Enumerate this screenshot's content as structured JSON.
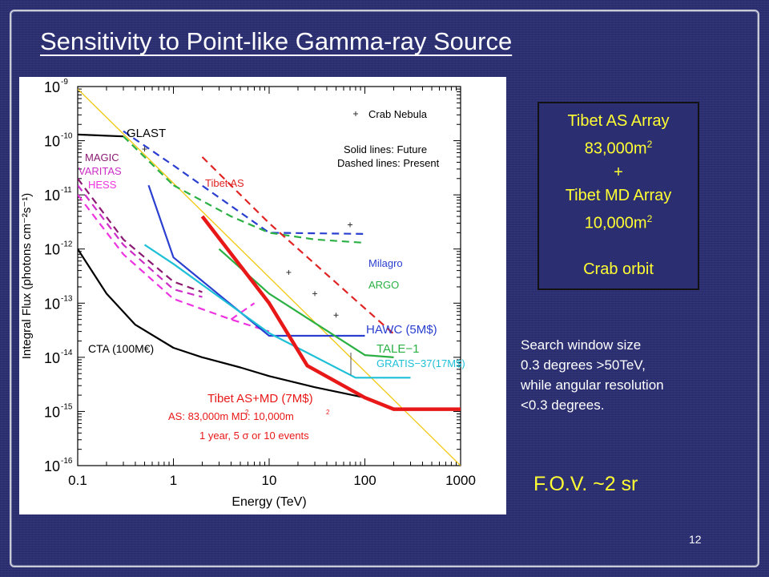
{
  "slide": {
    "title": "Sensitivity to Point-like Gamma-ray Source",
    "page_number": "12",
    "fov": "F.O.V. ~2 sr",
    "search_note": [
      "Search window size",
      "0.3 degrees >50TeV,",
      "while angular resolution",
      "<0.3 degrees."
    ],
    "tibet_box": {
      "as_label": "Tibet AS Array",
      "as_area": "83,000m",
      "as_area_exp": "2",
      "plus": "+",
      "md_label": "Tibet MD Array",
      "md_area": "10,000m",
      "md_area_exp": "2",
      "crab": "Crab orbit"
    }
  },
  "chart_data": {
    "type": "line",
    "xscale": "log",
    "yscale": "log",
    "xlabel": "Energy (TeV)",
    "ylabel": "Integral Flux (photons cm⁻²s⁻¹)",
    "xlim": [
      0.1,
      1000
    ],
    "ylim": [
      1e-16,
      1e-09
    ],
    "x_ticks": [
      "0.1",
      "1",
      "10",
      "100",
      "1000"
    ],
    "y_ticks": [
      "10",
      "10",
      "10",
      "10",
      "10",
      "10",
      "10",
      "10"
    ],
    "y_tick_exponents": [
      "-16",
      "-15",
      "-14",
      "-13",
      "-12",
      "-11",
      "-10",
      "-9"
    ],
    "legend_notes": {
      "crab": "Crab Nebula",
      "solid": "Solid lines: Future",
      "dashed": "Dashed lines: Present"
    },
    "annotation_lines": [
      "AS: 83,000m  MD: 10,000m",
      "1 year, 5 σ or 10 events"
    ],
    "annotation_exps": [
      "2",
      "2"
    ],
    "series": [
      {
        "name": "Crab Nebula",
        "color": "#f2c811",
        "style": "solid",
        "width": 1.3,
        "x": [
          0.1,
          1000
        ],
        "y": [
          9e-10,
          1e-16
        ]
      },
      {
        "name": "GLAST",
        "color": "#000000",
        "style": "solid",
        "width": 2.2,
        "x": [
          0.1,
          0.3
        ],
        "y": [
          1.3e-10,
          1.2e-10
        ]
      },
      {
        "name": "GLAST-ext",
        "color": "#2ab043",
        "style": "dashed",
        "width": 2.2,
        "x": [
          0.3,
          0.5,
          1.0
        ],
        "y": [
          1.2e-10,
          5e-11,
          1.5e-11
        ]
      },
      {
        "name": "CTA (100M€)",
        "color": "#000000",
        "style": "solid",
        "width": 2.2,
        "x": [
          0.1,
          0.2,
          0.4,
          1.0,
          2.0,
          5.0,
          10,
          30,
          100
        ],
        "y": [
          1e-12,
          1.5e-13,
          4e-14,
          1.5e-14,
          1e-14,
          6.5e-15,
          4.5e-15,
          2.8e-15,
          1.8e-15
        ]
      },
      {
        "name": "MAGIC",
        "color": "#8b1a73",
        "style": "dashed",
        "width": 2.2,
        "x": [
          0.1,
          0.3,
          1.0,
          2.0
        ],
        "y": [
          2e-11,
          1.5e-12,
          2.5e-13,
          1.6e-13
        ]
      },
      {
        "name": "VARITAS",
        "color": "#cc2ec7",
        "style": "dashed",
        "width": 2.2,
        "x": [
          0.1,
          0.3,
          1.0,
          2.0
        ],
        "y": [
          1.5e-11,
          1.2e-12,
          1.8e-13,
          1.3e-13
        ]
      },
      {
        "name": "HESS",
        "color": "#ee33e0",
        "style": "dashed",
        "width": 2.2,
        "x": [
          0.1,
          0.3,
          1.0,
          4.0,
          10
        ],
        "y": [
          1e-11,
          8e-13,
          1.2e-13,
          5e-14,
          3e-14
        ]
      },
      {
        "name": "HESS-up",
        "color": "#ee33e0",
        "style": "dashed",
        "width": 2.2,
        "x": [
          4.0,
          7.0
        ],
        "y": [
          5e-14,
          1e-13
        ]
      },
      {
        "name": "Milagro",
        "color": "#2a3fd0",
        "style": "dashed",
        "width": 2.2,
        "x": [
          0.3,
          1.0,
          10,
          100
        ],
        "y": [
          1.5e-10,
          3.5e-11,
          2e-12,
          1.9e-12
        ]
      },
      {
        "name": "ARGO",
        "color": "#2ab043",
        "style": "dashed",
        "width": 2.2,
        "x": [
          1.0,
          4.0,
          10,
          30,
          100
        ],
        "y": [
          1.5e-11,
          4e-12,
          2e-12,
          1.5e-12,
          1.3e-12
        ]
      },
      {
        "name": "Tibet AS",
        "color": "#e02424",
        "style": "dashed",
        "width": 2.2,
        "x": [
          2.0,
          10,
          100,
          200
        ],
        "y": [
          5e-11,
          3e-12,
          8e-14,
          2.7e-14
        ]
      },
      {
        "name": "HAWC (5M$)",
        "color": "#2a3fd0",
        "style": "solid",
        "width": 2.2,
        "x": [
          0.55,
          1.0,
          10,
          100
        ],
        "y": [
          1.5e-11,
          7e-13,
          2.5e-14,
          2.5e-14
        ]
      },
      {
        "name": "TALE−1",
        "color": "#2ab043",
        "style": "solid",
        "width": 2.2,
        "x": [
          3.0,
          10,
          100,
          200
        ],
        "y": [
          1e-12,
          1.5e-13,
          1.1e-14,
          1e-14
        ]
      },
      {
        "name": "GRATIS−37(17M$)",
        "color": "#1ec0d8",
        "style": "solid",
        "width": 2.2,
        "x": [
          0.5,
          1.0,
          10,
          80,
          300
        ],
        "y": [
          1.2e-12,
          5.3e-13,
          2.8e-14,
          4.2e-15,
          4.2e-15
        ]
      },
      {
        "name": "Tibet AS+MD (7M$)",
        "color": "#e81818",
        "style": "solid",
        "width": 4.5,
        "x": [
          2.0,
          10,
          25,
          100,
          200,
          1000
        ],
        "y": [
          4e-12,
          1e-13,
          7e-15,
          1.8e-15,
          1.1e-15,
          1.1e-15
        ]
      }
    ],
    "crab_points": [
      {
        "x": 0.5,
        "y": 7e-11
      },
      {
        "x": 16,
        "y": 3.7e-13
      },
      {
        "x": 30,
        "y": 1.5e-13
      },
      {
        "x": 50,
        "y": 6e-14
      },
      {
        "x": 70,
        "y": 2.8e-12
      }
    ],
    "series_labels": [
      {
        "key": "GLAST",
        "text": "GLAST",
        "color": "#000000",
        "size": 15
      },
      {
        "key": "MAGIC",
        "text": "MAGIC",
        "color": "#8b1a73",
        "size": 13
      },
      {
        "key": "VARITAS",
        "text": "VARITAS",
        "color": "#cc2ec7",
        "size": 13
      },
      {
        "key": "HESS",
        "text": "HESS",
        "color": "#ee33e0",
        "size": 13
      },
      {
        "key": "TibetAS",
        "text": "Tibet AS",
        "color": "#e02424",
        "size": 13
      },
      {
        "key": "Milagro",
        "text": "Milagro",
        "color": "#2a3fd0",
        "size": 13
      },
      {
        "key": "ARGO",
        "text": "ARGO",
        "color": "#2ab043",
        "size": 13
      },
      {
        "key": "HAWC",
        "text": "HAWC (5M$)",
        "color": "#2a3fd0",
        "size": 15
      },
      {
        "key": "TALE",
        "text": "TALE−1",
        "color": "#2ab043",
        "size": 15
      },
      {
        "key": "GRATIS",
        "text": "GRATIS−37(17M$)",
        "color": "#1ec0d8",
        "size": 13
      },
      {
        "key": "CTA",
        "text": "CTA (100M€)",
        "color": "#000000",
        "size": 14
      },
      {
        "key": "TibetASMD",
        "text": "Tibet AS+MD (7M$)",
        "color": "#e81818",
        "size": 15
      }
    ]
  }
}
